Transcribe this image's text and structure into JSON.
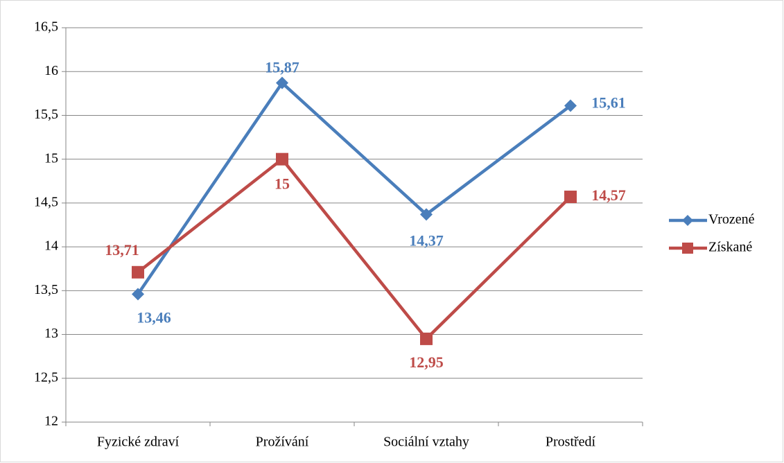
{
  "chart_data": {
    "type": "line",
    "categories": [
      "Fyzické zdraví",
      "Prožívání",
      "Sociální vztahy",
      "Prostředí"
    ],
    "series": [
      {
        "name": "Vrozené",
        "color": "#4a7ebb",
        "marker": "diamond",
        "values": [
          13.46,
          15.87,
          14.37,
          15.61
        ],
        "value_labels": [
          "13,46",
          "15,87",
          "14,37",
          "15,61"
        ]
      },
      {
        "name": "Získané",
        "color": "#be4b48",
        "marker": "square",
        "values": [
          13.71,
          15,
          12.95,
          14.57
        ],
        "value_labels": [
          "13,71",
          "15",
          "12,95",
          "14,57"
        ]
      }
    ],
    "ylim": [
      12,
      16.5
    ],
    "yticks": [
      12,
      {
        "value": 12.5,
        "label": "12,5"
      },
      13,
      {
        "value": 13.5,
        "label": "13,5"
      },
      14,
      {
        "value": 14.5,
        "label": "14,5"
      },
      15,
      {
        "value": 15.5,
        "label": "15,5"
      },
      16,
      {
        "value": 16.5,
        "label": "16,5"
      }
    ],
    "grid": true,
    "legend": "right"
  }
}
